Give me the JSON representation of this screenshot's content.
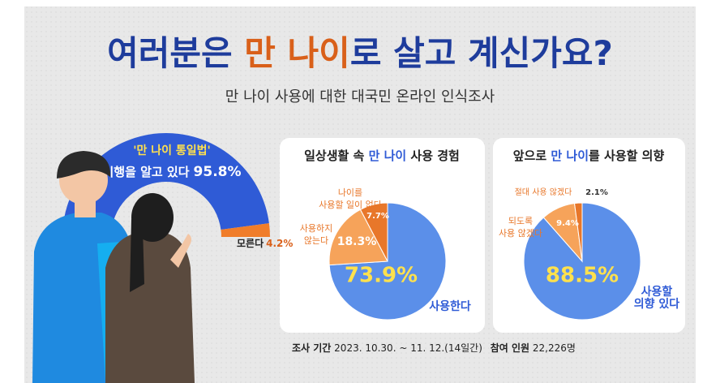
{
  "header": {
    "title": [
      "여러분은 ",
      "만 나이",
      "로 살고 계신가요?"
    ],
    "subtitle": "만 나이 사용에 대한 대국민 온라인 인식조사"
  },
  "chart_data": [
    {
      "type": "gauge",
      "title": "'만 나이 통일법'",
      "categories": [
        "시행을 알고 있다",
        "모른다"
      ],
      "values": [
        95.8,
        4.2
      ],
      "value_labels": [
        "95.8%",
        "4.2%"
      ],
      "colors": [
        "#2f5bd6",
        "#f07d2a"
      ]
    },
    {
      "type": "pie",
      "title": [
        "일상생활 속 ",
        "만 나이",
        " 사용 경험"
      ],
      "categories": [
        [
          "사용한다"
        ],
        [
          "사용하지",
          "않는다"
        ],
        [
          "나이를",
          "사용할 일이 없다"
        ]
      ],
      "values": [
        73.9,
        18.3,
        7.7
      ],
      "value_labels": [
        "73.9%",
        "18.3%",
        "7.7%"
      ],
      "colors": [
        "#5b8fe9",
        "#f6a35a",
        "#e8772a"
      ]
    },
    {
      "type": "pie",
      "title": [
        "앞으로 ",
        "만 나이",
        "를 사용할 의향"
      ],
      "categories": [
        [
          "사용할",
          "의향 있다"
        ],
        [
          "되도록",
          "사용 않겠다"
        ],
        [
          "절대 사용 않겠다"
        ]
      ],
      "values": [
        88.5,
        9.4,
        2.1
      ],
      "value_labels": [
        "88.5%",
        "9.4%",
        "2.1%"
      ],
      "colors": [
        "#5b8fe9",
        "#f6a35a",
        "#e8772a"
      ]
    }
  ],
  "footer": {
    "period_label": "조사 기간",
    "period": "2023. 10.30. ~ 11. 12.(14일간)",
    "count_label": "참여 인원",
    "count": "22,226명"
  }
}
